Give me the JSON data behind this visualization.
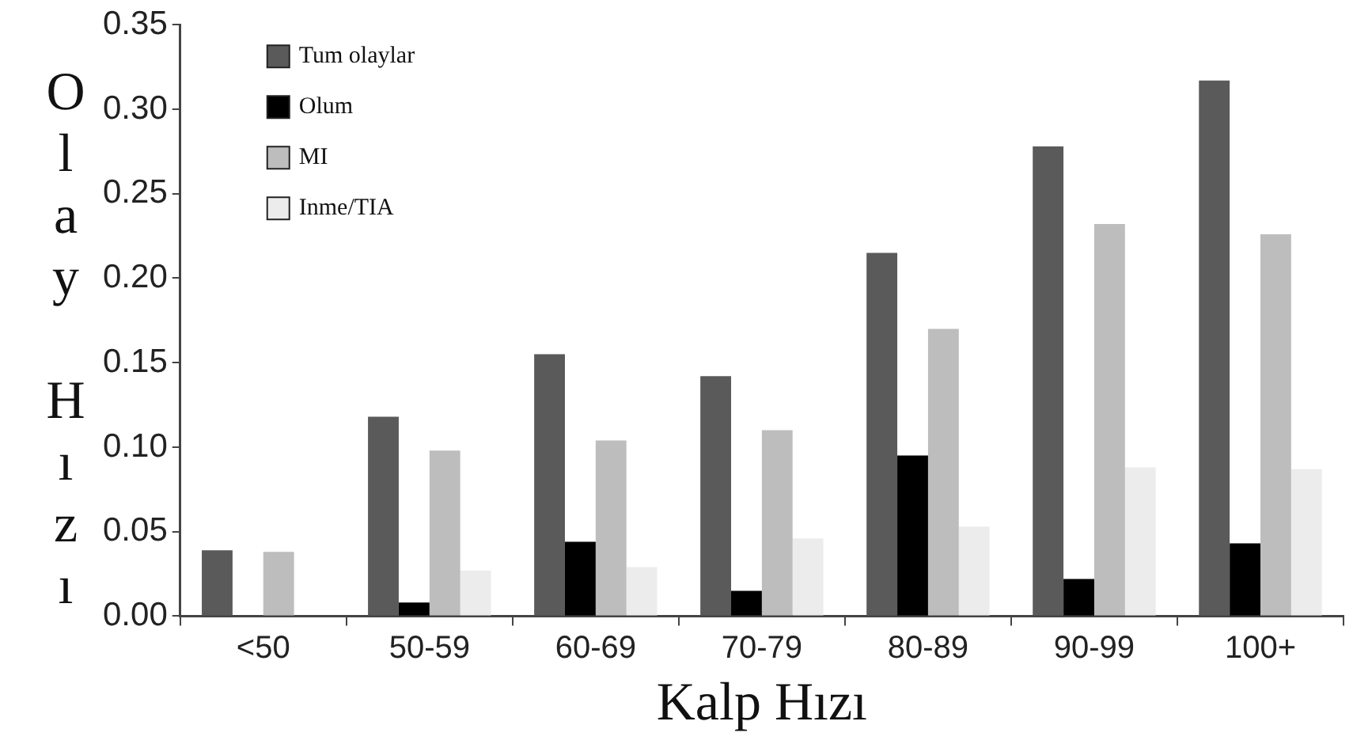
{
  "chart_data": {
    "type": "bar",
    "xlabel": "Kalp Hızı",
    "ylabel": "Olay Hızı",
    "categories": [
      "<50",
      "50-59",
      "60-69",
      "70-79",
      "80-89",
      "90-99",
      "100+"
    ],
    "series": [
      {
        "name": "Tum olaylar",
        "color": "#5a5a5a",
        "values": [
          0.039,
          0.118,
          0.155,
          0.142,
          0.215,
          0.278,
          0.317
        ]
      },
      {
        "name": "Olum",
        "color": "#000000",
        "values": [
          null,
          0.008,
          0.044,
          0.015,
          0.095,
          0.022,
          0.043
        ]
      },
      {
        "name": "MI",
        "color": "#bdbdbd",
        "values": [
          0.038,
          0.098,
          0.104,
          0.11,
          0.17,
          0.232,
          0.226
        ]
      },
      {
        "name": "Inme/TIA",
        "color": "#ececec",
        "values": [
          null,
          0.027,
          0.029,
          0.046,
          0.053,
          0.088,
          0.087
        ]
      }
    ],
    "ylim": [
      0,
      0.35
    ],
    "yticks": [
      {
        "value": 0,
        "label": "0.00"
      },
      {
        "value": 0.05,
        "label": "0.05"
      },
      {
        "value": 0.1,
        "label": "0.10"
      },
      {
        "value": 0.15,
        "label": "0.15"
      },
      {
        "value": 0.2,
        "label": "0.20"
      },
      {
        "value": 0.25,
        "label": "0.25"
      },
      {
        "value": 0.3,
        "label": "0.30"
      },
      {
        "value": 0.35,
        "label": "0.35"
      }
    ],
    "grid": false,
    "legend": "top left"
  }
}
